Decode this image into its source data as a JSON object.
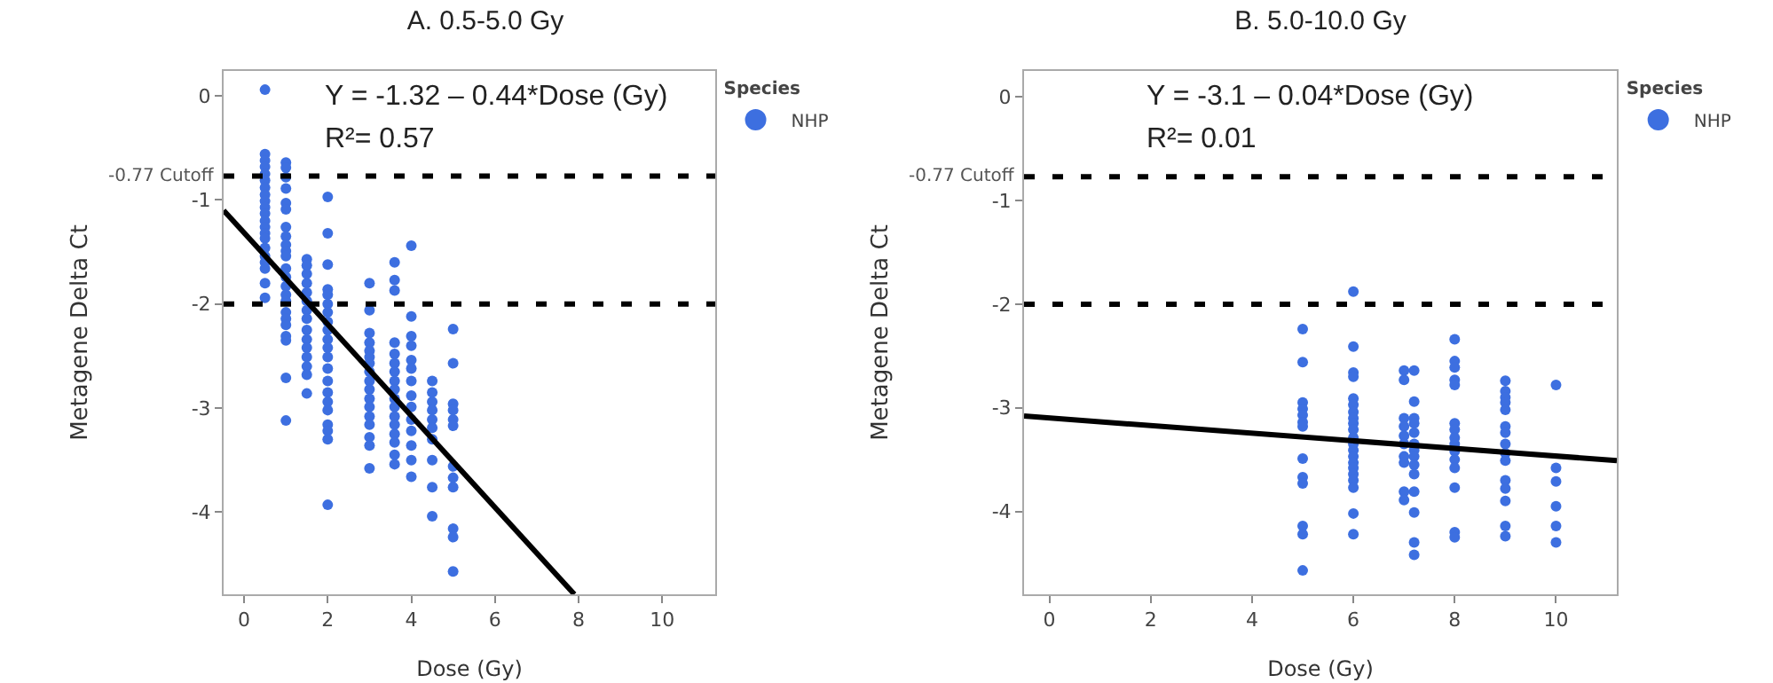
{
  "chart_data": [
    {
      "type": "scatter",
      "title": "A. 0.5-5.0 Gy",
      "xlabel": "Dose (Gy)",
      "ylabel": "Metagene Delta Ct",
      "legend_title": "Species",
      "legend": "top right",
      "xlim": [
        -0.49,
        11.27
      ],
      "ylim": [
        -4.79,
        0.24
      ],
      "xticks": [
        0,
        2,
        4,
        6,
        8,
        10
      ],
      "yticks": [
        0,
        -1,
        -2,
        -3,
        -4
      ],
      "annotations": [
        "Y = -1.32 – 0.44*Dose (Gy)",
        "R²= 0.57"
      ],
      "ref_lines": [
        {
          "axis": "y",
          "value": -0.77,
          "label": "-0.77 Cutoff",
          "color": "#000000",
          "line_style": "dashed"
        },
        {
          "axis": "y",
          "value": -2,
          "color": "#000000",
          "line_style": "dashed"
        }
      ],
      "series": [
        {
          "name": "NHP",
          "color": "#3d6fe0",
          "marker": "circle",
          "x": [
            0.5,
            0.5,
            0.5,
            0.5,
            0.5,
            0.5,
            0.5,
            0.5,
            0.5,
            0.5,
            0.5,
            0.5,
            0.5,
            0.5,
            0.5,
            0.5,
            0.5,
            0.5,
            0.5,
            0.5,
            0.5,
            1,
            1,
            1,
            1,
            1,
            1,
            1,
            1,
            1,
            1,
            1,
            1,
            1,
            1,
            1,
            1,
            1,
            1,
            1,
            1,
            1,
            1,
            1,
            1.5,
            1.5,
            1.5,
            1.5,
            1.5,
            1.5,
            1.5,
            1.5,
            1.5,
            1.5,
            1.5,
            1.5,
            1.5,
            1.5,
            1.5,
            2,
            2,
            2,
            2,
            2,
            2,
            2,
            2,
            2,
            2,
            2,
            2,
            2,
            2,
            2,
            2,
            2,
            2,
            2,
            2,
            2,
            3,
            3,
            3,
            3,
            3,
            3,
            3,
            3,
            3,
            3,
            3,
            3,
            3,
            3,
            3,
            3,
            3,
            3.6,
            3.6,
            3.6,
            3.6,
            3.6,
            3.6,
            3.6,
            3.6,
            3.6,
            3.6,
            3.6,
            3.6,
            3.6,
            3.6,
            3.6,
            3.6,
            3.6,
            4,
            4,
            4,
            4,
            4,
            4,
            4,
            4,
            4,
            4,
            4,
            4,
            4,
            4,
            4.5,
            4.5,
            4.5,
            4.5,
            4.5,
            4.5,
            4.5,
            4.5,
            4.5,
            4.5,
            5,
            5,
            5,
            5,
            5,
            5,
            5,
            5,
            5,
            5,
            5,
            5
          ],
          "values": [
            0.06,
            -0.56,
            -0.62,
            -0.68,
            -0.75,
            -0.81,
            -0.88,
            -0.95,
            -1.01,
            -1.07,
            -1.13,
            -1.2,
            -1.26,
            -1.32,
            -1.37,
            -1.46,
            -1.54,
            -1.6,
            -1.66,
            -1.8,
            -1.94,
            -0.64,
            -0.69,
            -0.78,
            -0.89,
            -1.03,
            -1.09,
            -1.26,
            -1.35,
            -1.43,
            -1.49,
            -1.54,
            -1.66,
            -1.74,
            -1.83,
            -1.91,
            -1.97,
            -2.08,
            -2.14,
            -2.2,
            -2.31,
            -2.35,
            -2.71,
            -3.12,
            -1.57,
            -1.63,
            -1.71,
            -1.8,
            -1.89,
            -1.97,
            -2.06,
            -2.14,
            -2.25,
            -2.34,
            -2.42,
            -2.51,
            -2.6,
            -2.68,
            -2.86,
            -0.97,
            -1.32,
            -1.62,
            -1.86,
            -1.91,
            -2.0,
            -2.08,
            -2.17,
            -2.25,
            -2.34,
            -2.42,
            -2.51,
            -2.62,
            -2.74,
            -2.85,
            -2.94,
            -3.02,
            -3.16,
            -3.22,
            -3.3,
            -3.93,
            -1.8,
            -2.06,
            -2.28,
            -2.37,
            -2.45,
            -2.51,
            -2.57,
            -2.65,
            -2.74,
            -2.82,
            -2.91,
            -2.99,
            -3.08,
            -3.16,
            -3.28,
            -3.36,
            -3.58,
            -1.6,
            -1.77,
            -1.87,
            -2.37,
            -2.48,
            -2.57,
            -2.65,
            -2.74,
            -2.82,
            -2.91,
            -2.99,
            -3.08,
            -3.16,
            -3.25,
            -3.33,
            -3.45,
            -3.54,
            -1.44,
            -2.12,
            -2.31,
            -2.4,
            -2.54,
            -2.62,
            -2.74,
            -2.88,
            -2.99,
            -3.11,
            -3.22,
            -3.36,
            -3.5,
            -3.66,
            -2.74,
            -2.85,
            -2.94,
            -3.02,
            -3.11,
            -3.19,
            -3.3,
            -3.5,
            -3.76,
            -4.04,
            -2.24,
            -2.57,
            -2.96,
            -3.02,
            -3.11,
            -3.17,
            -3.56,
            -3.67,
            -3.76,
            -4.16,
            -4.24,
            -4.57
          ]
        },
        {
          "type": "line",
          "marker": "none",
          "color": "#000000",
          "x": [
            -0.49,
            7.9
          ],
          "values": [
            -1.1,
            -4.79
          ]
        }
      ]
    },
    {
      "type": "scatter",
      "title": "B. 5.0-10.0 Gy",
      "xlabel": "Dose (Gy)",
      "ylabel": "Metagene Delta Ct",
      "legend_title": "Species",
      "legend": "top right",
      "xlim": [
        -0.5,
        11.2
      ],
      "ylim": [
        -4.8,
        0.25
      ],
      "xticks": [
        0,
        2,
        4,
        6,
        8,
        10
      ],
      "yticks": [
        0,
        -1,
        -2,
        -3,
        -4
      ],
      "annotations": [
        "Y = -3.1 – 0.04*Dose (Gy)",
        "R²= 0.01"
      ],
      "ref_lines": [
        {
          "axis": "y",
          "value": -0.77,
          "label": "-0.77 Cutoff",
          "color": "#000000",
          "line_style": "dashed"
        },
        {
          "axis": "y",
          "value": -2,
          "color": "#000000",
          "line_style": "dashed"
        }
      ],
      "series": [
        {
          "name": "NHP",
          "color": "#3d6fe0",
          "marker": "circle",
          "x": [
            5,
            5,
            5,
            5,
            5,
            5,
            5,
            5,
            5,
            5,
            5,
            5,
            5,
            6,
            6,
            6,
            6,
            6,
            6,
            6,
            6,
            6,
            6,
            6,
            6,
            6,
            6,
            6,
            6,
            6,
            6,
            6,
            6,
            6,
            7,
            7,
            7,
            7,
            7,
            7,
            7,
            7,
            7,
            7,
            7.2,
            7.2,
            7.2,
            7.2,
            7.2,
            7.2,
            7.2,
            7.2,
            7.2,
            7.2,
            7.2,
            7.2,
            7.2,
            7.2,
            8,
            8,
            8,
            8,
            8,
            8,
            8,
            8,
            8,
            8,
            8,
            8,
            8,
            8,
            8,
            9,
            9,
            9,
            9,
            9,
            9,
            9,
            9,
            9,
            9,
            9,
            9,
            9,
            9,
            9,
            10,
            10,
            10,
            10,
            10,
            10
          ],
          "values": [
            -2.24,
            -2.56,
            -2.95,
            -3.01,
            -3.07,
            -3.14,
            -3.18,
            -3.49,
            -3.67,
            -3.73,
            -4.14,
            -4.22,
            -4.57,
            -1.88,
            -2.41,
            -2.66,
            -2.7,
            -2.91,
            -2.97,
            -3.04,
            -3.1,
            -3.15,
            -3.21,
            -3.29,
            -3.35,
            -3.41,
            -3.47,
            -3.53,
            -3.58,
            -3.64,
            -3.7,
            -3.77,
            -4.02,
            -4.22,
            -2.64,
            -2.73,
            -3.1,
            -3.18,
            -3.27,
            -3.35,
            -3.47,
            -3.53,
            -3.81,
            -3.89,
            -2.64,
            -2.94,
            -3.1,
            -3.15,
            -3.24,
            -3.35,
            -3.41,
            -3.47,
            -3.55,
            -3.64,
            -3.81,
            -4.01,
            -4.3,
            -4.42,
            -2.34,
            -2.55,
            -2.61,
            -2.73,
            -2.78,
            -3.15,
            -3.21,
            -3.29,
            -3.35,
            -3.42,
            -3.5,
            -3.58,
            -3.77,
            -4.2,
            -4.25,
            -2.74,
            -2.84,
            -2.9,
            -2.95,
            -3.02,
            -3.18,
            -3.24,
            -3.35,
            -3.44,
            -3.51,
            -3.7,
            -3.78,
            -3.9,
            -4.14,
            -4.24,
            -2.78,
            -3.58,
            -3.71,
            -3.95,
            -4.14,
            -4.3
          ]
        },
        {
          "type": "line",
          "marker": "none",
          "color": "#000000",
          "x": [
            -0.5,
            11.2
          ],
          "values": [
            -3.08,
            -3.51
          ]
        }
      ]
    }
  ]
}
